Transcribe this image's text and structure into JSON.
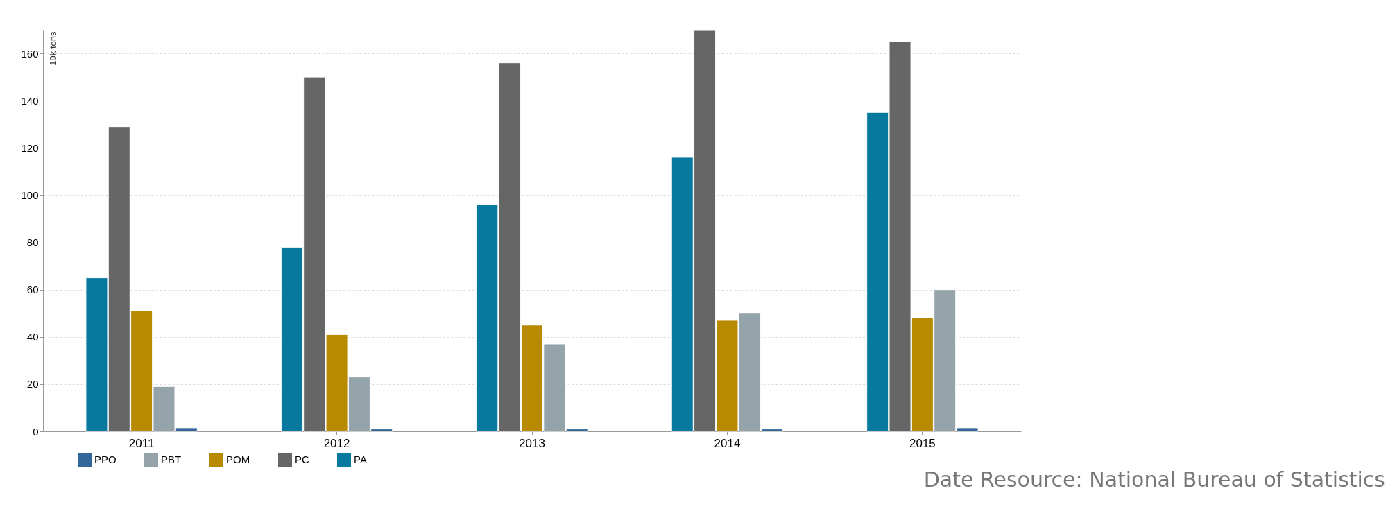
{
  "chart_data": {
    "type": "bar",
    "ylabel": "10k tons",
    "categories": [
      "2011",
      "2012",
      "2013",
      "2014",
      "2015"
    ],
    "series": [
      {
        "name": "PA",
        "color": "#08799e",
        "values": [
          65,
          78,
          96,
          116,
          135
        ]
      },
      {
        "name": "PC",
        "color": "#666666",
        "values": [
          129,
          150,
          156,
          170,
          165
        ]
      },
      {
        "name": "POM",
        "color": "#b88a00",
        "values": [
          51,
          41,
          45,
          47,
          48
        ]
      },
      {
        "name": "PBT",
        "color": "#95a3aa",
        "values": [
          19,
          23,
          37,
          50,
          60
        ]
      },
      {
        "name": "PPO",
        "color": "#336699",
        "values": [
          1.5,
          1,
          1,
          1,
          1.5
        ]
      }
    ],
    "ylim": [
      0,
      170
    ],
    "yticks": [
      0,
      20,
      40,
      60,
      80,
      100,
      120,
      140,
      160
    ],
    "grid": "y",
    "legend": "bottom left",
    "annotations": [
      "Date Resource: National Bureau of Statistics"
    ]
  }
}
